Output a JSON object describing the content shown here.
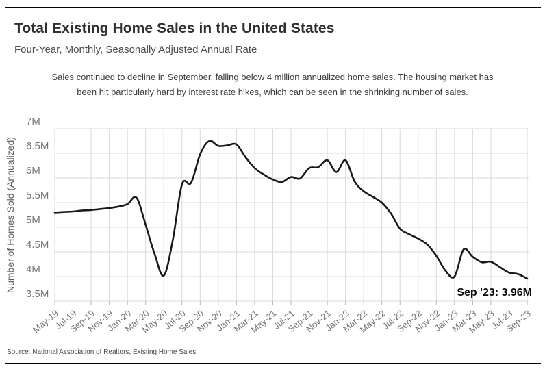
{
  "header": {
    "title": "Total Existing Home Sales in the United States",
    "subtitle": "Four-Year, Monthly, Seasonally Adjusted Annual Rate",
    "description_line1": "Sales continued to decline in September, falling below 4 million annualized home sales. The housing market has",
    "description_line2": "been hit particularly hard by interest rate hikes, which can be seen in the shrinking number of sales."
  },
  "footer": {
    "source": "Source:  National Association of Realtors, Existing Home Sales"
  },
  "chart_data": {
    "type": "line",
    "title": "Total Existing Home Sales in the United States",
    "xlabel": "",
    "ylabel": "Number of Homes Sold (Annualized)",
    "months": [
      "May-19",
      "Jun-19",
      "Jul-19",
      "Aug-19",
      "Sep-19",
      "Oct-19",
      "Nov-19",
      "Dec-19",
      "Jan-20",
      "Feb-20",
      "Mar-20",
      "Apr-20",
      "May-20",
      "Jun-20",
      "Jul-20",
      "Aug-20",
      "Sep-20",
      "Oct-20",
      "Nov-20",
      "Dec-20",
      "Jan-21",
      "Feb-21",
      "Mar-21",
      "Apr-21",
      "May-21",
      "Jun-21",
      "Jul-21",
      "Aug-21",
      "Sep-21",
      "Oct-21",
      "Nov-21",
      "Dec-21",
      "Jan-22",
      "Feb-22",
      "Mar-22",
      "Apr-22",
      "May-22",
      "Jun-22",
      "Jul-22",
      "Aug-22",
      "Sep-22",
      "Oct-22",
      "Nov-22",
      "Dec-22",
      "Jan-23",
      "Feb-23",
      "Mar-23",
      "Apr-23",
      "May-23",
      "Jun-23",
      "Jul-23",
      "Aug-23",
      "Sep-23"
    ],
    "values": [
      5.3,
      5.31,
      5.32,
      5.34,
      5.35,
      5.37,
      5.39,
      5.42,
      5.47,
      5.6,
      5.05,
      4.45,
      4.02,
      4.75,
      5.87,
      5.9,
      6.48,
      6.75,
      6.65,
      6.66,
      6.68,
      6.42,
      6.2,
      6.07,
      5.97,
      5.92,
      6.02,
      5.99,
      6.2,
      6.22,
      6.36,
      6.12,
      6.36,
      5.93,
      5.73,
      5.62,
      5.5,
      5.28,
      4.97,
      4.86,
      4.77,
      4.65,
      4.42,
      4.12,
      4.0,
      4.55,
      4.4,
      4.29,
      4.3,
      4.19,
      4.08,
      4.05,
      3.96
    ],
    "xtick_every": 2,
    "yticks": [
      3.5,
      4,
      4.5,
      5,
      5.5,
      6,
      6.5,
      7
    ],
    "ytick_labels": [
      "3.5M",
      "4M",
      "4.5M",
      "5M",
      "5.5M",
      "6M",
      "6.5M",
      "7M"
    ],
    "ylim": [
      3.5,
      7
    ],
    "grid": true,
    "legend_position": "none",
    "line_color": "#191919",
    "grid_color": "#d9d9d9",
    "tick_label_color": "#757575",
    "annotation": {
      "text": "Sep '23: 3.96M",
      "month": "Sep-23",
      "value": 3.96
    }
  }
}
